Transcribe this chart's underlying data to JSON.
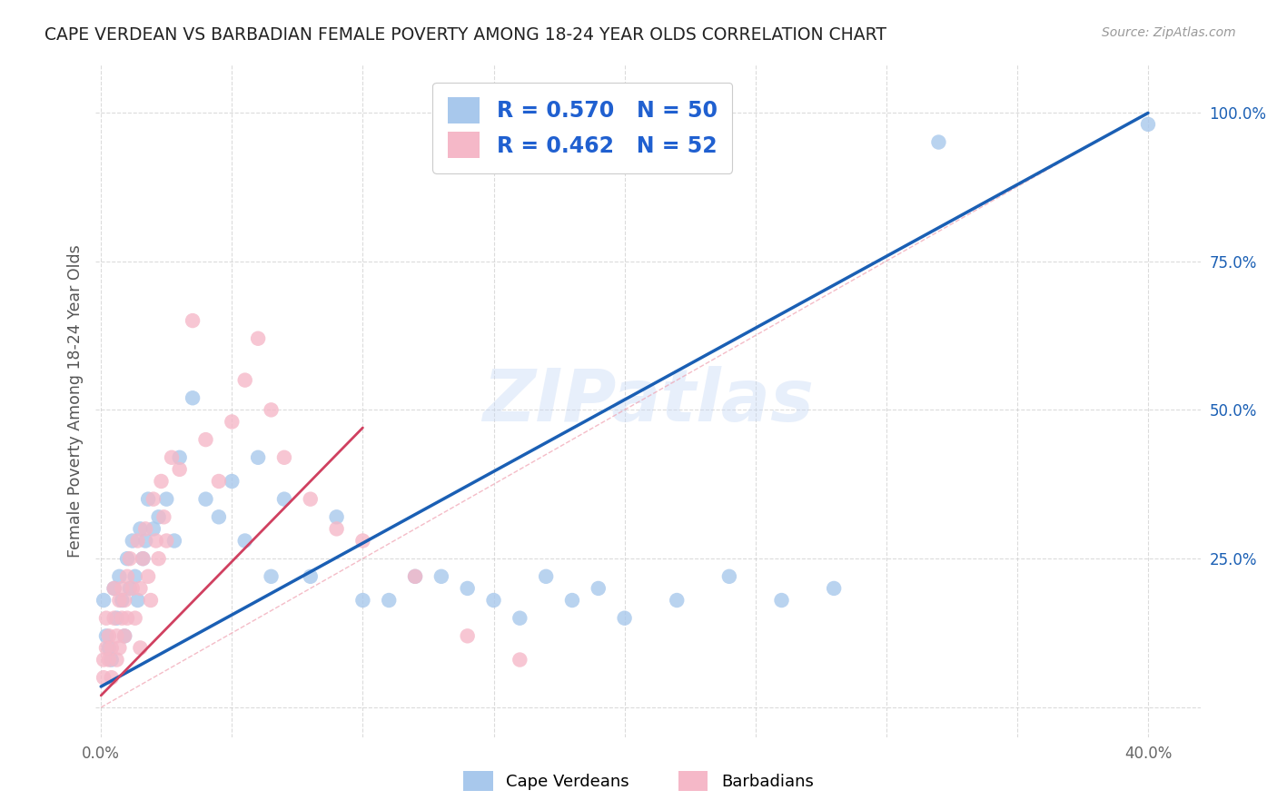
{
  "title": "CAPE VERDEAN VS BARBADIAN FEMALE POVERTY AMONG 18-24 YEAR OLDS CORRELATION CHART",
  "source": "Source: ZipAtlas.com",
  "ylabel": "Female Poverty Among 18-24 Year Olds",
  "xlim": [
    -0.002,
    0.42
  ],
  "ylim": [
    -0.05,
    1.08
  ],
  "xticks": [
    0.0,
    0.05,
    0.1,
    0.15,
    0.2,
    0.25,
    0.3,
    0.35,
    0.4
  ],
  "yticks": [
    0.0,
    0.25,
    0.5,
    0.75,
    1.0
  ],
  "blue_color": "#a8c8ec",
  "pink_color": "#f5b8c8",
  "line_blue_color": "#1a5fb4",
  "line_pink_color": "#d04060",
  "ref_line_color": "#f0a0b0",
  "grid_color": "#cccccc",
  "watermark": "ZIPatlas",
  "legend_blue_r": "0.570",
  "legend_blue_n": "50",
  "legend_pink_r": "0.462",
  "legend_pink_n": "52",
  "legend_blue_label": "Cape Verdeans",
  "legend_pink_label": "Barbadians",
  "blue_intercept": 0.035,
  "blue_slope": 2.41,
  "pink_intercept": 0.02,
  "pink_slope": 4.5,
  "blue_x": [
    0.001,
    0.002,
    0.003,
    0.004,
    0.005,
    0.006,
    0.007,
    0.008,
    0.009,
    0.01,
    0.011,
    0.012,
    0.013,
    0.014,
    0.015,
    0.016,
    0.017,
    0.018,
    0.02,
    0.022,
    0.025,
    0.028,
    0.03,
    0.035,
    0.04,
    0.045,
    0.05,
    0.055,
    0.06,
    0.065,
    0.07,
    0.08,
    0.09,
    0.1,
    0.11,
    0.12,
    0.13,
    0.14,
    0.15,
    0.16,
    0.17,
    0.18,
    0.19,
    0.2,
    0.22,
    0.24,
    0.26,
    0.28,
    0.32,
    0.4
  ],
  "blue_y": [
    0.18,
    0.12,
    0.1,
    0.08,
    0.2,
    0.15,
    0.22,
    0.18,
    0.12,
    0.25,
    0.2,
    0.28,
    0.22,
    0.18,
    0.3,
    0.25,
    0.28,
    0.35,
    0.3,
    0.32,
    0.35,
    0.28,
    0.42,
    0.52,
    0.35,
    0.32,
    0.38,
    0.28,
    0.42,
    0.22,
    0.35,
    0.22,
    0.32,
    0.18,
    0.18,
    0.22,
    0.22,
    0.2,
    0.18,
    0.15,
    0.22,
    0.18,
    0.2,
    0.15,
    0.18,
    0.22,
    0.18,
    0.2,
    0.95,
    0.98
  ],
  "pink_x": [
    0.001,
    0.001,
    0.002,
    0.002,
    0.003,
    0.003,
    0.004,
    0.004,
    0.005,
    0.005,
    0.006,
    0.006,
    0.007,
    0.007,
    0.008,
    0.008,
    0.009,
    0.009,
    0.01,
    0.01,
    0.011,
    0.012,
    0.013,
    0.014,
    0.015,
    0.015,
    0.016,
    0.017,
    0.018,
    0.019,
    0.02,
    0.021,
    0.022,
    0.023,
    0.024,
    0.025,
    0.027,
    0.03,
    0.035,
    0.04,
    0.045,
    0.05,
    0.055,
    0.06,
    0.065,
    0.07,
    0.08,
    0.09,
    0.1,
    0.12,
    0.14,
    0.16
  ],
  "pink_y": [
    0.05,
    0.08,
    0.1,
    0.15,
    0.08,
    0.12,
    0.05,
    0.1,
    0.15,
    0.2,
    0.08,
    0.12,
    0.18,
    0.1,
    0.15,
    0.2,
    0.12,
    0.18,
    0.22,
    0.15,
    0.25,
    0.2,
    0.15,
    0.28,
    0.2,
    0.1,
    0.25,
    0.3,
    0.22,
    0.18,
    0.35,
    0.28,
    0.25,
    0.38,
    0.32,
    0.28,
    0.42,
    0.4,
    0.65,
    0.45,
    0.38,
    0.48,
    0.55,
    0.62,
    0.5,
    0.42,
    0.35,
    0.3,
    0.28,
    0.22,
    0.12,
    0.08
  ]
}
